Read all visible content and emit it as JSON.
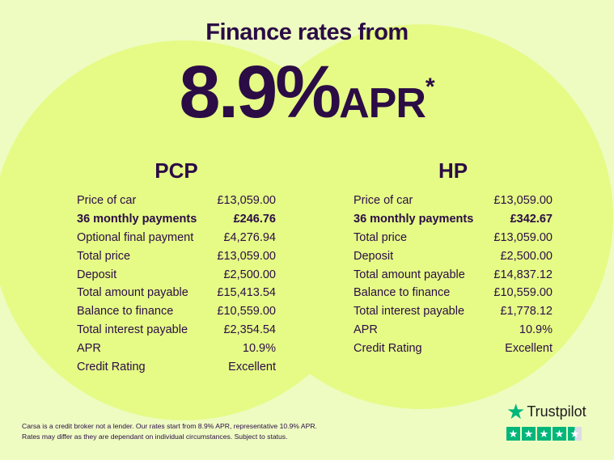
{
  "header": {
    "title": "Finance rates from",
    "rate": "8.9%",
    "apr": "APR",
    "asterisk": "*"
  },
  "pcp": {
    "title": "PCP",
    "rows": [
      {
        "label": "Price of car",
        "value": "£13,059.00",
        "bold": false
      },
      {
        "label": "36 monthly payments",
        "value": "£246.76",
        "bold": true
      },
      {
        "label": "Optional final payment",
        "value": "£4,276.94",
        "bold": false
      },
      {
        "label": "Total price",
        "value": "£13,059.00",
        "bold": false
      },
      {
        "label": "Deposit",
        "value": "£2,500.00",
        "bold": false
      },
      {
        "label": "Total amount payable",
        "value": "£15,413.54",
        "bold": false
      },
      {
        "label": "Balance to finance",
        "value": "£10,559.00",
        "bold": false
      },
      {
        "label": "Total interest payable",
        "value": "£2,354.54",
        "bold": false
      },
      {
        "label": "APR",
        "value": "10.9%",
        "bold": false
      },
      {
        "label": "Credit Rating",
        "value": "Excellent",
        "bold": false
      }
    ]
  },
  "hp": {
    "title": "HP",
    "rows": [
      {
        "label": "Price of car",
        "value": "£13,059.00",
        "bold": false
      },
      {
        "label": "36 monthly payments",
        "value": "£342.67",
        "bold": true
      },
      {
        "label": "Total price",
        "value": "£13,059.00",
        "bold": false
      },
      {
        "label": "Deposit",
        "value": "£2,500.00",
        "bold": false
      },
      {
        "label": "Total amount payable",
        "value": "£14,837.12",
        "bold": false
      },
      {
        "label": "Balance to finance",
        "value": "£10,559.00",
        "bold": false
      },
      {
        "label": "Total interest payable",
        "value": "£1,778.12",
        "bold": false
      },
      {
        "label": "APR",
        "value": "10.9%",
        "bold": false
      },
      {
        "label": "Credit Rating",
        "value": "Excellent",
        "bold": false
      }
    ]
  },
  "disclaimer": {
    "line1": "Carsa is a credit broker not a lender. Our rates start from 8.9% APR, representative 10.9% APR.",
    "line2": "Rates may differ as they are dependant on individual circumstances. Subject to status."
  },
  "trustpilot": {
    "label": "Trustpilot",
    "rating": 4.5,
    "icon": "star-icon"
  },
  "colors": {
    "background": "#eefcc2",
    "circle": "#e5fb86",
    "text": "#2b0c45",
    "trustpilot": "#00b67a"
  }
}
